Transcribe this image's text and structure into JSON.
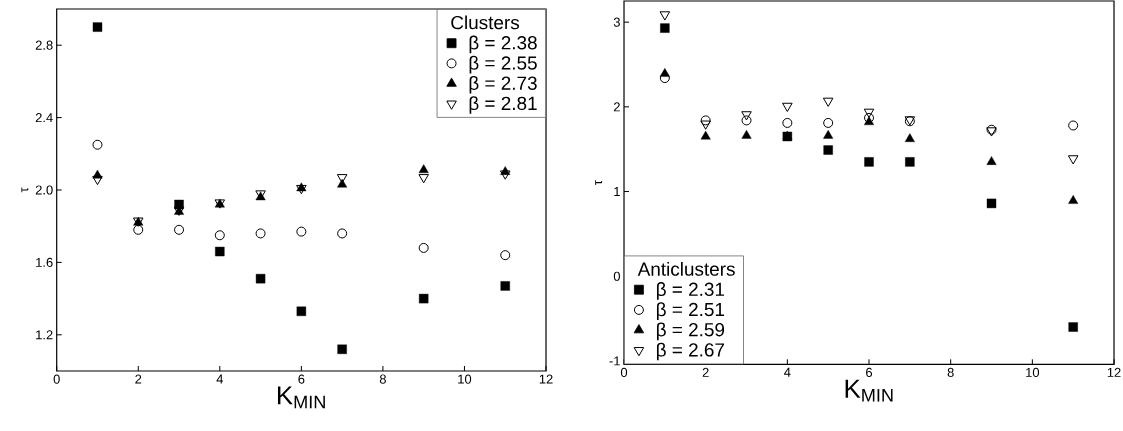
{
  "chart_data": [
    {
      "type": "scatter",
      "xlabel": "K$_{MIN}$",
      "ylabel": "τ",
      "legend_title": "Clusters",
      "legend": "top right",
      "x": [
        1,
        2,
        3,
        4,
        5,
        6,
        7,
        9,
        11
      ],
      "xlim": [
        0,
        12
      ],
      "xticks": [
        0,
        2,
        4,
        6,
        8,
        10,
        12
      ],
      "ylim": [
        1.0,
        3.0
      ],
      "yticks": [
        1.2,
        1.6,
        {
          "value": 2.0,
          "label": "2.0"
        },
        2.4,
        2.8
      ],
      "series": [
        {
          "name": "β = 2.38",
          "color": "#000000",
          "marker": "square",
          "values": [
            2.9,
            1.92,
            1.66,
            1.51,
            1.33,
            1.12,
            1.4,
            1.47
          ],
          "x": [
            1,
            3,
            4,
            5,
            6,
            7,
            9,
            11
          ]
        },
        {
          "name": "β = 2.55",
          "color": "#000000",
          "marker": "circle",
          "values": [
            2.25,
            1.78,
            1.78,
            1.75,
            1.76,
            1.77,
            1.76,
            1.68,
            1.64
          ]
        },
        {
          "name": "β = 2.73",
          "color": "#000000",
          "marker": "triangle",
          "values": [
            2.08,
            1.82,
            1.88,
            1.92,
            1.96,
            2.01,
            2.03,
            2.11,
            2.1
          ]
        },
        {
          "name": "β = 2.81",
          "color": "#000000",
          "marker": "triangle-down",
          "values": [
            2.06,
            1.83,
            1.89,
            1.93,
            1.98,
            2.01,
            2.07,
            2.07,
            2.09
          ]
        }
      ]
    },
    {
      "type": "scatter",
      "xlabel": "K$_{MIN}$",
      "ylabel": "τ",
      "legend_title": "Anticlusters",
      "legend": "bottom left",
      "x": [
        1,
        2,
        3,
        4,
        5,
        6,
        7,
        9,
        11
      ],
      "xlim": [
        0,
        12
      ],
      "xticks": [
        0,
        2,
        4,
        6,
        8,
        10,
        12
      ],
      "ylim": [
        -1.04,
        3.25
      ],
      "yticks": [
        -1,
        0,
        1,
        2,
        3
      ],
      "series": [
        {
          "name": "β = 2.31",
          "color": "#000000",
          "marker": "square",
          "values": [
            2.93,
            1.65,
            1.49,
            1.35,
            1.35,
            0.86,
            -0.6
          ],
          "x": [
            1,
            4,
            5,
            6,
            7,
            9,
            11
          ]
        },
        {
          "name": "β = 2.51",
          "color": "#000000",
          "marker": "circle",
          "values": [
            2.34,
            1.84,
            1.84,
            1.81,
            1.81,
            1.87,
            1.83,
            1.73,
            1.78
          ]
        },
        {
          "name": "β = 2.59",
          "color": "#000000",
          "marker": "triangle",
          "values": [
            2.39,
            1.65,
            1.66,
            1.65,
            1.66,
            1.82,
            1.62,
            1.35,
            0.89
          ]
        },
        {
          "name": "β = 2.67",
          "color": "#000000",
          "marker": "triangle-down",
          "values": [
            3.09,
            1.8,
            1.91,
            2.01,
            2.07,
            1.94,
            1.85,
            1.72,
            1.39
          ]
        }
      ]
    }
  ]
}
